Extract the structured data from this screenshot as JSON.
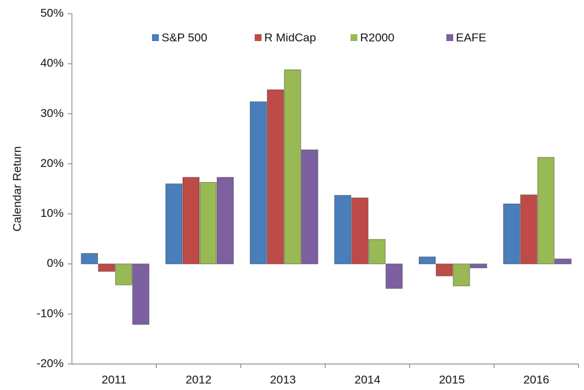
{
  "chart_data": {
    "type": "bar",
    "y_label": "Calendar Return",
    "categories": [
      "2011",
      "2012",
      "2013",
      "2014",
      "2015",
      "2016"
    ],
    "series": [
      {
        "name": "S&P 500",
        "color": "#4a7ebb",
        "values": [
          2.1,
          16.0,
          32.4,
          13.7,
          1.4,
          12.0
        ]
      },
      {
        "name": "R MidCap",
        "color": "#be4b48",
        "values": [
          -1.5,
          17.3,
          34.8,
          13.2,
          -2.4,
          13.8
        ]
      },
      {
        "name": "R2000",
        "color": "#98b954",
        "values": [
          -4.2,
          16.3,
          38.8,
          4.9,
          -4.4,
          21.3
        ]
      },
      {
        "name": "EAFE",
        "color": "#7d60a0",
        "values": [
          -12.1,
          17.3,
          22.8,
          -4.9,
          -0.8,
          1.0
        ]
      }
    ],
    "ylim": [
      -20,
      50
    ],
    "yticks": [
      {
        "value": -20,
        "label": "-20%"
      },
      {
        "value": -10,
        "label": "-10%"
      },
      {
        "value": 0,
        "label": "0%"
      },
      {
        "value": 10,
        "label": "10%"
      },
      {
        "value": 20,
        "label": "20%"
      },
      {
        "value": 30,
        "label": "30%"
      },
      {
        "value": 40,
        "label": "40%"
      },
      {
        "value": 50,
        "label": "50%"
      }
    ],
    "legend": "top"
  }
}
